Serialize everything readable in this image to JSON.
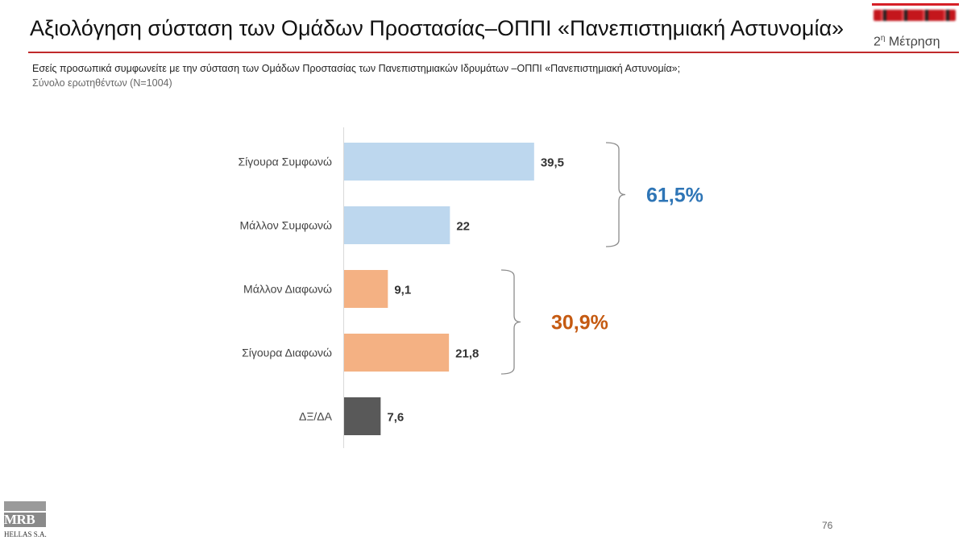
{
  "header": {
    "title": "Αξιολόγηση σύσταση των Ομάδων Προστασίας–ΟΠΠΙ «Πανεπιστημιακή Αστυνομία»",
    "measure_base": "2",
    "measure_sup": "η",
    "measure_word": "Μέτρηση"
  },
  "question": "Εσείς προσωπικά συμφωνείτε με την σύσταση των Ομάδων Προστασίας των Πανεπιστημιακών Ιδρυμάτων –ΟΠΠΙ «Πανεπιστημιακή Αστυνομία»;",
  "base_note": "Σύνολο ερωτηθέντων (Ν=1004)",
  "colors": {
    "agree": "#bdd7ee",
    "disagree": "#f4b183",
    "dkna": "#595959",
    "agree_total": "#2e75b6",
    "disagree_total": "#c55a11",
    "accent_rule": "#c0292b"
  },
  "chart_data": {
    "type": "bar",
    "orientation": "horizontal",
    "categories": [
      "Σίγουρα Συμφωνώ",
      "Μάλλον Συμφωνώ",
      "Μάλλον Διαφωνώ",
      "Σίγουρα Διαφωνώ",
      "ΔΞ/ΔΑ"
    ],
    "values": [
      39.5,
      22,
      9.1,
      21.8,
      7.6
    ],
    "value_labels": [
      "39,5",
      "22",
      "9,1",
      "21,8",
      "7,6"
    ],
    "xlim": [
      0,
      40
    ],
    "groups": [
      {
        "label": "61,5%",
        "members": [
          0,
          1
        ]
      },
      {
        "label": "30,9%",
        "members": [
          2,
          3
        ]
      }
    ]
  },
  "footer": {
    "logo_text": "MRB",
    "logo_sub": "HELLAS S.A.",
    "page_number": "76"
  }
}
